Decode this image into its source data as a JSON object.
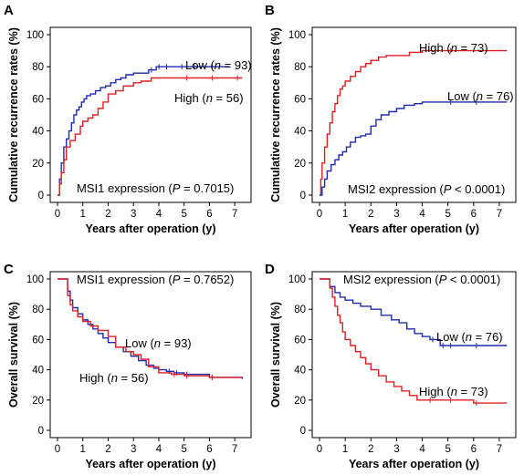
{
  "chart_data": [
    {
      "panel": "A",
      "type": "line",
      "xlabel": "Years after operation (y)",
      "ylabel": "Cumulative recurrence rates (%)",
      "xlim": [
        0,
        7.5
      ],
      "ylim": [
        0,
        100
      ],
      "xticks": [
        0,
        1,
        2,
        3,
        4,
        5,
        6,
        7
      ],
      "yticks": [
        0,
        20,
        40,
        60,
        80,
        100
      ],
      "annotation": {
        "text": "MSI1 expression (",
        "italic": "P",
        "rest": " = 0.7015)"
      },
      "series": [
        {
          "name": "Low",
          "n_label": "n",
          "n_value": " = 93)",
          "label_prefix": "Low (",
          "color": "#1f2bb0",
          "x": [
            0,
            0.08,
            0.15,
            0.25,
            0.35,
            0.45,
            0.55,
            0.65,
            0.75,
            0.85,
            0.95,
            1.05,
            1.15,
            1.3,
            1.5,
            1.7,
            1.9,
            2.1,
            2.3,
            2.5,
            2.7,
            3.0,
            3.3,
            3.6,
            3.9,
            4.2,
            4.8,
            5.3,
            6.0,
            6.8
          ],
          "y": [
            0,
            10,
            20,
            30,
            35,
            40,
            45,
            50,
            53,
            55,
            58,
            60,
            62,
            63,
            65,
            67,
            68,
            70,
            72,
            73,
            75,
            76,
            76,
            78,
            80,
            80,
            80,
            80,
            80,
            80
          ]
        },
        {
          "name": "High",
          "n_label": "n",
          "n_value": " = 56)",
          "label_prefix": "High (",
          "color": "#e02020",
          "x": [
            0,
            0.08,
            0.15,
            0.25,
            0.35,
            0.5,
            0.7,
            0.9,
            1.0,
            1.2,
            1.4,
            1.6,
            1.8,
            2.0,
            2.3,
            2.6,
            3.0,
            3.3,
            3.7,
            4.0,
            5.0,
            6.0,
            7.0,
            7.3
          ],
          "y": [
            0,
            7,
            14,
            22,
            30,
            34,
            38,
            43,
            46,
            48,
            50,
            54,
            58,
            63,
            65,
            68,
            70,
            71,
            73,
            73,
            73,
            73,
            73,
            73
          ]
        }
      ]
    },
    {
      "panel": "B",
      "type": "line",
      "xlabel": "Years after operation (y)",
      "ylabel": "Cumulative recurrence rates (%)",
      "xlim": [
        0,
        7.5
      ],
      "ylim": [
        0,
        100
      ],
      "xticks": [
        0,
        1,
        2,
        3,
        4,
        5,
        6,
        7
      ],
      "yticks": [
        0,
        20,
        40,
        60,
        80,
        100
      ],
      "annotation": {
        "text": "MSI2 expression (",
        "italic": "P",
        "rest": " < 0.0001)"
      },
      "series": [
        {
          "name": "High",
          "n_label": "n",
          "n_value": " = 73)",
          "label_prefix": "High (",
          "color": "#e02020",
          "x": [
            0,
            0.05,
            0.1,
            0.2,
            0.3,
            0.4,
            0.5,
            0.6,
            0.7,
            0.8,
            0.9,
            1.0,
            1.2,
            1.4,
            1.6,
            1.8,
            2.0,
            2.3,
            2.6,
            3.0,
            3.5,
            4.0,
            5.0,
            7.3
          ],
          "y": [
            0,
            10,
            20,
            30,
            38,
            45,
            52,
            57,
            62,
            66,
            68,
            71,
            74,
            77,
            80,
            82,
            84,
            86,
            87,
            87,
            89,
            90,
            90,
            90
          ]
        },
        {
          "name": "Low",
          "n_label": "n",
          "n_value": " = 76)",
          "label_prefix": "Low (",
          "color": "#1f2bb0",
          "x": [
            0,
            0.1,
            0.2,
            0.3,
            0.45,
            0.6,
            0.75,
            0.9,
            1.05,
            1.2,
            1.4,
            1.6,
            1.8,
            2.0,
            2.2,
            2.4,
            2.7,
            3.0,
            3.3,
            3.7,
            4.0,
            5.0,
            6.0,
            7.3
          ],
          "y": [
            0,
            5,
            10,
            15,
            19,
            22,
            25,
            27,
            30,
            33,
            36,
            37,
            38,
            43,
            47,
            50,
            52,
            54,
            56,
            57,
            58,
            58,
            58,
            58
          ]
        }
      ]
    },
    {
      "panel": "C",
      "type": "line",
      "xlabel": "Years after operation (y)",
      "ylabel": "Overall survival (%)",
      "xlim": [
        0,
        7.5
      ],
      "ylim": [
        0,
        100
      ],
      "xticks": [
        0,
        1,
        2,
        3,
        4,
        5,
        6,
        7
      ],
      "yticks": [
        0,
        20,
        40,
        60,
        80,
        100
      ],
      "annotation": {
        "text": "MSI1 expression (",
        "italic": "P",
        "rest": " = 0.7652)"
      },
      "series": [
        {
          "name": "Low",
          "n_label": "n",
          "n_value": " = 93)",
          "label_prefix": "Low (",
          "color": "#1f2bb0",
          "x": [
            0,
            0.3,
            0.4,
            0.5,
            0.6,
            0.8,
            1.0,
            1.2,
            1.4,
            1.6,
            1.8,
            2.0,
            2.3,
            2.6,
            2.9,
            3.2,
            3.5,
            3.8,
            4.0,
            4.3,
            4.6,
            5.0,
            6.0,
            7.3
          ],
          "y": [
            100,
            100,
            92,
            86,
            81,
            77,
            73,
            70,
            67,
            64,
            61,
            58,
            55,
            52,
            49,
            46,
            43,
            41,
            40,
            39,
            38,
            37,
            35,
            34
          ]
        },
        {
          "name": "High",
          "n_label": "n",
          "n_value": " = 56)",
          "label_prefix": "High (",
          "color": "#e02020",
          "x": [
            0,
            0.3,
            0.4,
            0.5,
            0.6,
            0.8,
            1.0,
            1.3,
            1.6,
            2.0,
            2.3,
            2.7,
            3.0,
            3.3,
            3.6,
            4.0,
            4.5,
            5.0,
            6.0,
            7.3
          ],
          "y": [
            100,
            100,
            89,
            83,
            79,
            75,
            72,
            69,
            66,
            62,
            55,
            52,
            50,
            47,
            42,
            38,
            37,
            36,
            35,
            35
          ]
        }
      ]
    },
    {
      "panel": "D",
      "type": "line",
      "xlabel": "Years after operation (y)",
      "ylabel": "Overall survival (%)",
      "xlim": [
        0,
        7.5
      ],
      "ylim": [
        0,
        100
      ],
      "xticks": [
        0,
        1,
        2,
        3,
        4,
        5,
        6,
        7
      ],
      "yticks": [
        0,
        20,
        40,
        60,
        80,
        100
      ],
      "annotation": {
        "text": "MSI2 expression (",
        "italic": "P",
        "rest": " < 0.0001)"
      },
      "series": [
        {
          "name": "Low",
          "n_label": "n",
          "n_value": " = 76)",
          "label_prefix": "Low (",
          "color": "#1f2bb0",
          "x": [
            0,
            0.3,
            0.4,
            0.6,
            0.8,
            1.0,
            1.3,
            1.6,
            2.0,
            2.4,
            2.8,
            3.1,
            3.4,
            3.7,
            4.0,
            4.3,
            4.7,
            5.0,
            6.0,
            7.3
          ],
          "y": [
            100,
            100,
            95,
            91,
            88,
            86,
            84,
            82,
            80,
            76,
            73,
            71,
            67,
            64,
            62,
            60,
            56,
            56,
            56,
            56
          ]
        },
        {
          "name": "High",
          "n_label": "n",
          "n_value": " = 73)",
          "label_prefix": "High (",
          "color": "#e02020",
          "x": [
            0,
            0.3,
            0.4,
            0.5,
            0.6,
            0.7,
            0.8,
            0.9,
            1.0,
            1.2,
            1.4,
            1.6,
            1.8,
            2.0,
            2.3,
            2.6,
            2.9,
            3.2,
            3.5,
            3.8,
            4.2,
            5.0,
            6.0,
            7.3
          ],
          "y": [
            100,
            100,
            94,
            88,
            82,
            76,
            71,
            65,
            60,
            56,
            52,
            48,
            44,
            40,
            36,
            32,
            29,
            26,
            23,
            20,
            20,
            20,
            18,
            18
          ]
        }
      ]
    }
  ]
}
